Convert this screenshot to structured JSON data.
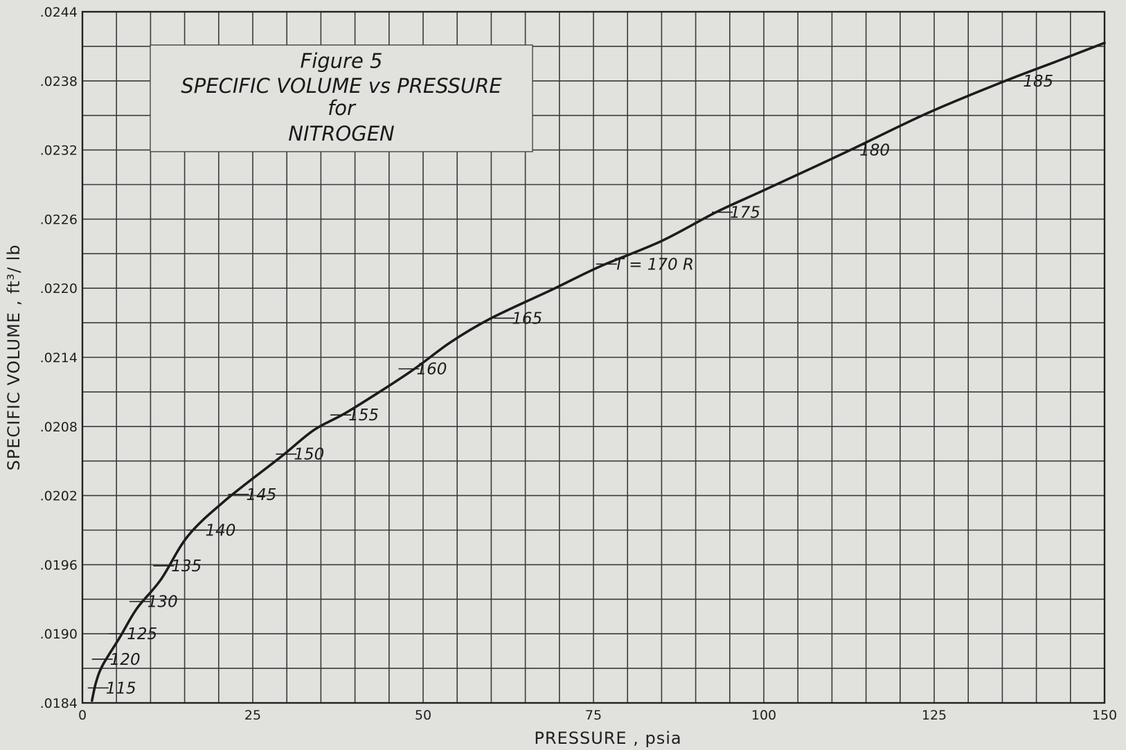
{
  "chart_data": {
    "type": "line",
    "title_lines": [
      "Figure 5",
      "SPECIFIC VOLUME vs PRESSURE",
      "for",
      "NITROGEN"
    ],
    "xlabel": "PRESSURE , psia",
    "ylabel": "SPECIFIC VOLUME , ft³/ lb",
    "xlim": [
      0,
      150
    ],
    "ylim": [
      0.0184,
      0.0244
    ],
    "x_ticks": [
      0,
      25,
      50,
      75,
      100,
      125,
      150
    ],
    "x_tick_labels": [
      "0",
      "25",
      "50",
      "75",
      "100",
      "125",
      "150"
    ],
    "y_ticks": [
      0.0184,
      0.019,
      0.0196,
      0.0202,
      0.0208,
      0.0214,
      0.022,
      0.0226,
      0.0232,
      0.0238,
      0.0244
    ],
    "y_tick_labels": [
      ".0184",
      ".0190",
      ".0196",
      ".0202",
      ".0208",
      ".0214",
      ".0220",
      ".0226",
      ".0232",
      ".0238",
      ".0244"
    ],
    "grid": true,
    "series": [
      {
        "x": [
          1.4,
          2.0,
          3.0,
          5.5,
          8.0,
          11.5,
          15.5,
          21.0,
          29.0,
          34.0,
          39.0,
          48.0,
          54.0,
          60.0,
          69.0,
          76.0,
          85.0,
          93.0,
          100.0,
          112.0,
          124.0,
          135.0,
          143.0,
          150.0
        ],
        "y": [
          0.01842,
          0.01858,
          0.01873,
          0.01897,
          0.01922,
          0.01947,
          0.01985,
          0.02016,
          0.02053,
          0.02077,
          0.02093,
          0.02127,
          0.02153,
          0.02174,
          0.02199,
          0.02219,
          0.02241,
          0.02266,
          0.02285,
          0.02318,
          0.02352,
          0.02379,
          0.02397,
          0.02413
        ]
      }
    ],
    "temperature_marks": [
      {
        "label": "115",
        "x": 1.4,
        "y": 0.01853
      },
      {
        "label": "120",
        "x": 2.0,
        "y": 0.01878
      },
      {
        "label": "125",
        "x": 4.5,
        "y": 0.019
      },
      {
        "label": "130",
        "x": 7.5,
        "y": 0.01928
      },
      {
        "label": "135",
        "x": 11.0,
        "y": 0.01959
      },
      {
        "label": "140",
        "x": 16.0,
        "y": 0.0199
      },
      {
        "label": "145",
        "x": 22.0,
        "y": 0.02021
      },
      {
        "label": "150",
        "x": 29.0,
        "y": 0.02056
      },
      {
        "label": "155",
        "x": 37.0,
        "y": 0.0209
      },
      {
        "label": "160",
        "x": 47.0,
        "y": 0.0213
      },
      {
        "label": "165",
        "x": 61.0,
        "y": 0.02174
      },
      {
        "label": "T = 170 R",
        "x": 76.0,
        "y": 0.02221
      },
      {
        "label": "175",
        "x": 93.0,
        "y": 0.02266
      },
      {
        "label": "180",
        "x": 112.0,
        "y": 0.0232
      },
      {
        "label": "185",
        "x": 136.0,
        "y": 0.0238
      }
    ]
  }
}
